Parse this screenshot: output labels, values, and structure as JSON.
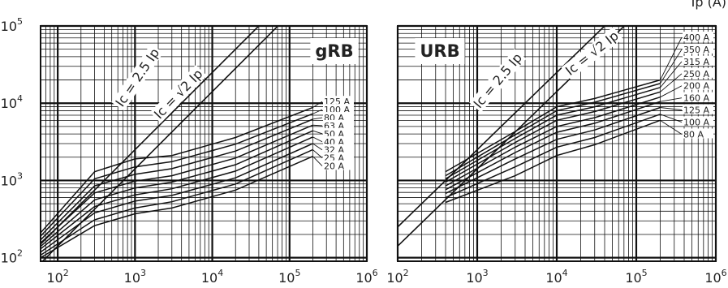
{
  "chart_data": [
    {
      "type": "line",
      "badge": "gRB",
      "x_scale": "log",
      "y_scale": "log",
      "xlim": [
        60,
        1000000
      ],
      "ylim": [
        90,
        100000
      ],
      "x_ticks": [
        {
          "base": "10",
          "exp": "2",
          "value": 100
        },
        {
          "base": "10",
          "exp": "3",
          "value": 1000
        },
        {
          "base": "10",
          "exp": "4",
          "value": 10000
        },
        {
          "base": "10",
          "exp": "5",
          "value": 100000
        },
        {
          "base": "10",
          "exp": "6",
          "value": 1000000
        }
      ],
      "y_ticks": [
        {
          "base": "10",
          "exp": "2",
          "value": 100
        },
        {
          "base": "10",
          "exp": "3",
          "value": 1000
        },
        {
          "base": "10",
          "exp": "4",
          "value": 10000
        },
        {
          "base": "10",
          "exp": "5",
          "value": 100000
        }
      ],
      "reference_lines": [
        {
          "label_main": "Ic = 2.5 Ip",
          "label_pre": "",
          "label_post": "",
          "factor": 2.5
        },
        {
          "label_main": "",
          "label_pre": "Ic = ",
          "label_post": "2 Ip",
          "factor": 1.414
        }
      ],
      "series": [
        {
          "name": "125 A",
          "points": [
            [
              60,
              210
            ],
            [
              300,
              1300
            ],
            [
              1000,
              1900
            ],
            [
              3000,
              2100
            ],
            [
              20000,
              3600
            ],
            [
              200000,
              8800
            ]
          ]
        },
        {
          "name": "100 A",
          "points": [
            [
              60,
              190
            ],
            [
              300,
              1050
            ],
            [
              1000,
              1500
            ],
            [
              3000,
              1750
            ],
            [
              20000,
              2950
            ],
            [
              200000,
              7300
            ]
          ]
        },
        {
          "name": "80 A",
          "points": [
            [
              60,
              170
            ],
            [
              300,
              850
            ],
            [
              1000,
              1200
            ],
            [
              3000,
              1420
            ],
            [
              20000,
              2400
            ],
            [
              200000,
              6200
            ]
          ]
        },
        {
          "name": "63 A",
          "points": [
            [
              60,
              155
            ],
            [
              300,
              690
            ],
            [
              1000,
              980
            ],
            [
              3000,
              1150
            ],
            [
              20000,
              1950
            ],
            [
              200000,
              5200
            ]
          ]
        },
        {
          "name": "50 A",
          "points": [
            [
              60,
              140
            ],
            [
              300,
              560
            ],
            [
              1000,
              800
            ],
            [
              3000,
              950
            ],
            [
              20000,
              1600
            ],
            [
              200000,
              4400
            ]
          ]
        },
        {
          "name": "40 A",
          "points": [
            [
              60,
              130
            ],
            [
              300,
              460
            ],
            [
              1000,
              650
            ],
            [
              3000,
              780
            ],
            [
              20000,
              1320
            ],
            [
              200000,
              3650
            ]
          ]
        },
        {
          "name": "32 A",
          "points": [
            [
              60,
              118
            ],
            [
              300,
              380
            ],
            [
              1000,
              540
            ],
            [
              3000,
              640
            ],
            [
              20000,
              1080
            ],
            [
              200000,
              3000
            ]
          ]
        },
        {
          "name": "25 A",
          "points": [
            [
              60,
              108
            ],
            [
              300,
              310
            ],
            [
              1000,
              440
            ],
            [
              3000,
              530
            ],
            [
              20000,
              900
            ],
            [
              200000,
              2500
            ]
          ]
        },
        {
          "name": "20 A",
          "points": [
            [
              60,
              100
            ],
            [
              300,
              260
            ],
            [
              1000,
              370
            ],
            [
              3000,
              440
            ],
            [
              20000,
              750
            ],
            [
              200000,
              2050
            ]
          ]
        }
      ]
    },
    {
      "type": "line",
      "badge": "URB",
      "ylabel": "Ip (A)",
      "x_scale": "log",
      "y_scale": "log",
      "xlim": [
        100,
        1000000
      ],
      "ylim": [
        90,
        100000
      ],
      "x_ticks": [
        {
          "base": "10",
          "exp": "2",
          "value": 100
        },
        {
          "base": "10",
          "exp": "3",
          "value": 1000
        },
        {
          "base": "10",
          "exp": "4",
          "value": 10000
        },
        {
          "base": "10",
          "exp": "5",
          "value": 100000
        },
        {
          "base": "10",
          "exp": "6",
          "value": 1000000
        }
      ],
      "reference_lines": [
        {
          "label_main": "Ic = 2.5 Ip",
          "label_pre": "",
          "label_post": "",
          "factor": 2.5
        },
        {
          "label_main": "",
          "label_pre": "Ic = ",
          "label_post": "2 Ip",
          "factor": 1.414
        }
      ],
      "series": [
        {
          "name": "400 A",
          "points": [
            [
              400,
              1300
            ],
            [
              3000,
              4300
            ],
            [
              10000,
              9000
            ],
            [
              30000,
              11500
            ],
            [
              200000,
              20000
            ]
          ]
        },
        {
          "name": "350 A",
          "points": [
            [
              400,
              1150
            ],
            [
              3000,
              3900
            ],
            [
              10000,
              8000
            ],
            [
              30000,
              10300
            ],
            [
              200000,
              18000
            ]
          ]
        },
        {
          "name": "315 A",
          "points": [
            [
              400,
              1050
            ],
            [
              3000,
              3500
            ],
            [
              10000,
              7000
            ],
            [
              30000,
              9000
            ],
            [
              200000,
              16000
            ]
          ]
        },
        {
          "name": "250 A",
          "points": [
            [
              400,
              950
            ],
            [
              3000,
              3100
            ],
            [
              10000,
              6000
            ],
            [
              30000,
              7800
            ],
            [
              200000,
              14000
            ]
          ]
        },
        {
          "name": "200 A",
          "points": [
            [
              400,
              850
            ],
            [
              3000,
              2700
            ],
            [
              10000,
              5000
            ],
            [
              30000,
              6500
            ],
            [
              200000,
              12000
            ]
          ]
        },
        {
          "name": "160 A",
          "points": [
            [
              400,
              760
            ],
            [
              3000,
              2300
            ],
            [
              10000,
              4200
            ],
            [
              30000,
              5500
            ],
            [
              200000,
              10500
            ]
          ]
        },
        {
          "name": "125 A",
          "points": [
            [
              400,
              680
            ],
            [
              3000,
              1900
            ],
            [
              10000,
              3400
            ],
            [
              30000,
              4500
            ],
            [
              200000,
              8800
            ]
          ]
        },
        {
          "name": "100 A",
          "points": [
            [
              400,
              600
            ],
            [
              3000,
              1500
            ],
            [
              10000,
              2700
            ],
            [
              30000,
              3600
            ],
            [
              200000,
              7200
            ]
          ]
        },
        {
          "name": "80 A",
          "points": [
            [
              400,
              520
            ],
            [
              3000,
              1150
            ],
            [
              10000,
              2100
            ],
            [
              30000,
              2900
            ],
            [
              200000,
              6000
            ]
          ]
        }
      ]
    }
  ]
}
